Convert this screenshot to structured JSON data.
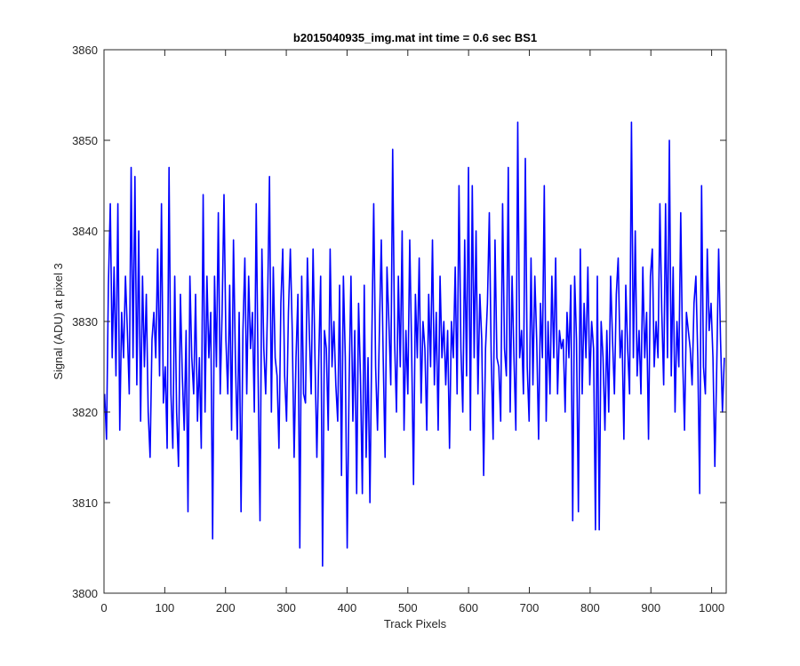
{
  "chart_data": {
    "type": "line",
    "title": "b2015040935_img.mat int time = 0.6 sec   BS1",
    "xlabel": "Track Pixels",
    "ylabel": "Signal (ADU) at pixel 3",
    "xlim": [
      0,
      1024
    ],
    "ylim": [
      3800,
      3860
    ],
    "xticks": [
      "0",
      "100",
      "200",
      "300",
      "400",
      "500",
      "600",
      "700",
      "800",
      "900",
      "1000"
    ],
    "yticks": [
      "3800",
      "3810",
      "3820",
      "3830",
      "3840",
      "3850",
      "3860"
    ],
    "grid": false,
    "colors": {
      "series": "#0000ff",
      "axes": "#262626",
      "background": "#ffffff"
    },
    "series": [
      {
        "x_start": 1,
        "x_step": 1,
        "values": [
          3822,
          3817,
          3834,
          3843,
          3826,
          3836,
          3824,
          3843,
          3818,
          3831,
          3826,
          3835,
          3829,
          3822,
          3847,
          3826,
          3846,
          3823,
          3840,
          3819,
          3835,
          3825,
          3833,
          3820,
          3815,
          3828,
          3831,
          3826,
          3838,
          3824,
          3843,
          3821,
          3825,
          3816,
          3847,
          3822,
          3816,
          3835,
          3820,
          3814,
          3833,
          3824,
          3818,
          3829,
          3809,
          3835,
          3826,
          3822,
          3833,
          3819,
          3826,
          3816,
          3844,
          3820,
          3835,
          3826,
          3831,
          3806,
          3835,
          3825,
          3842,
          3822,
          3831,
          3844,
          3828,
          3822,
          3834,
          3818,
          3839,
          3826,
          3817,
          3831,
          3809,
          3829,
          3837,
          3822,
          3835,
          3827,
          3831,
          3820,
          3843,
          3824,
          3808,
          3838,
          3827,
          3822,
          3832,
          3846,
          3820,
          3836,
          3826,
          3824,
          3816,
          3832,
          3838,
          3824,
          3819,
          3831,
          3838,
          3829,
          3815,
          3826,
          3833,
          3805,
          3835,
          3822,
          3821,
          3837,
          3829,
          3822,
          3838,
          3826,
          3815,
          3826,
          3835,
          3803,
          3829,
          3827,
          3818,
          3838,
          3825,
          3830,
          3823,
          3819,
          3834,
          3813,
          3835,
          3826,
          3805,
          3823,
          3835,
          3819,
          3829,
          3811,
          3832,
          3824,
          3811,
          3834,
          3815,
          3826,
          3810,
          3828,
          3843,
          3825,
          3818,
          3829,
          3839,
          3826,
          3815,
          3836,
          3830,
          3823,
          3849,
          3828,
          3820,
          3835,
          3825,
          3840,
          3818,
          3829,
          3822,
          3839,
          3827,
          3812,
          3833,
          3826,
          3837,
          3821,
          3830,
          3827,
          3818,
          3833,
          3825,
          3839,
          3823,
          3831,
          3818,
          3835,
          3826,
          3830,
          3823,
          3829,
          3816,
          3830,
          3826,
          3836,
          3822,
          3845,
          3827,
          3820,
          3839,
          3824,
          3847,
          3818,
          3845,
          3826,
          3840,
          3822,
          3833,
          3828,
          3813,
          3827,
          3832,
          3842,
          3826,
          3817,
          3839,
          3826,
          3825,
          3819,
          3843,
          3827,
          3824,
          3847,
          3820,
          3835,
          3826,
          3818,
          3852,
          3826,
          3829,
          3822,
          3848,
          3825,
          3819,
          3837,
          3823,
          3835,
          3828,
          3817,
          3832,
          3826,
          3845,
          3819,
          3830,
          3822,
          3835,
          3826,
          3837,
          3822,
          3829,
          3827,
          3828,
          3820,
          3831,
          3826,
          3834,
          3808,
          3835,
          3828,
          3809,
          3838,
          3822,
          3832,
          3826,
          3836,
          3823,
          3830,
          3827,
          3807,
          3835,
          3807,
          3830,
          3826,
          3818,
          3829,
          3820,
          3835,
          3828,
          3822,
          3833,
          3837,
          3826,
          3829,
          3817,
          3834,
          3827,
          3822,
          3852,
          3826,
          3840,
          3824,
          3829,
          3822,
          3836,
          3826,
          3831,
          3817,
          3835,
          3838,
          3825,
          3830,
          3826,
          3843,
          3831,
          3823,
          3843,
          3826,
          3850,
          3824,
          3836,
          3820,
          3830,
          3825,
          3842,
          3826,
          3818,
          3831,
          3829,
          3827,
          3823,
          3832,
          3835,
          3826,
          3811,
          3845,
          3825,
          3822,
          3838,
          3829,
          3832,
          3826,
          3814,
          3825,
          3838,
          3828,
          3820,
          3826
        ]
      }
    ]
  }
}
